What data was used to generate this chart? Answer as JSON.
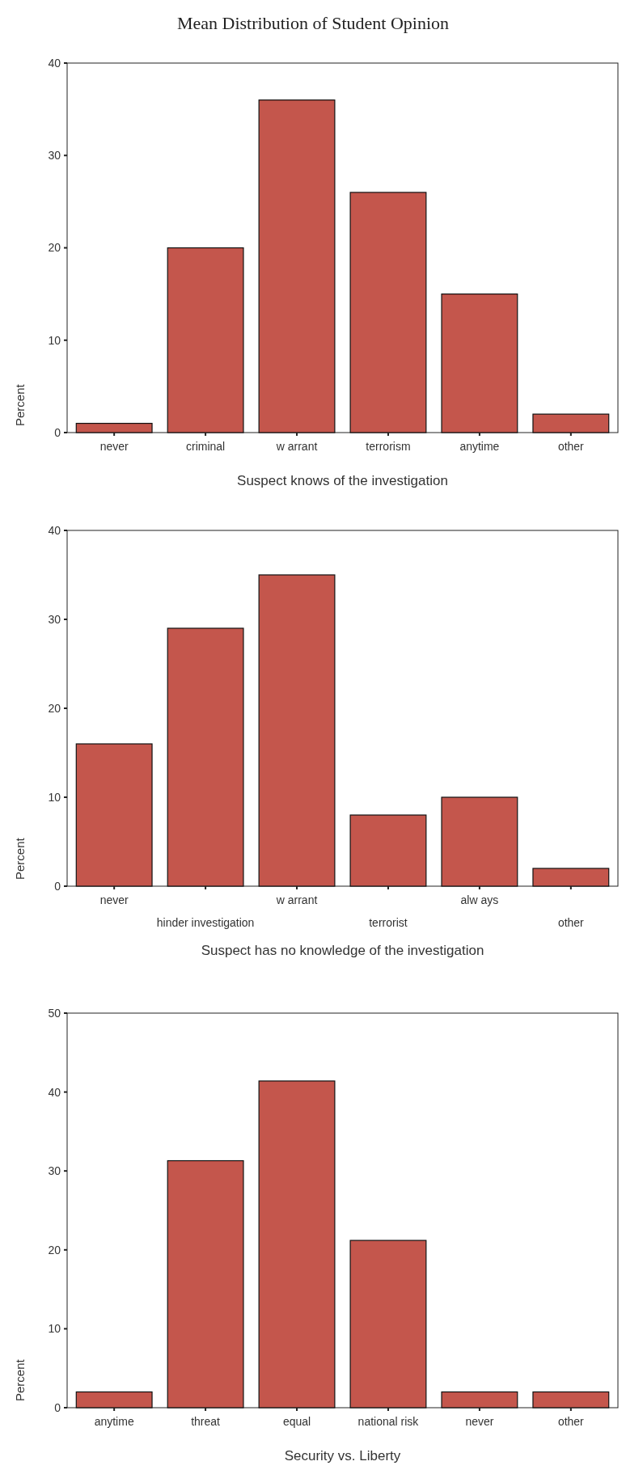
{
  "chart_data": [
    {
      "type": "bar",
      "title": "Mean Distribution of Student Opinion",
      "xlabel": "Suspect knows of the investigation",
      "ylabel": "Percent",
      "categories": [
        "never",
        "criminal",
        "w arrant",
        "terrorism",
        "anytime",
        "other"
      ],
      "values": [
        1,
        20,
        36,
        26,
        15,
        2
      ],
      "color": "#c4564c",
      "ylim": [
        0,
        40
      ],
      "yticks": [
        0,
        10,
        20,
        30,
        40
      ],
      "grid": false
    },
    {
      "type": "bar",
      "xlabel": "Suspect has no knowledge of the investigation",
      "ylabel": "Percent",
      "categories": [
        "never",
        "hinder investigation",
        "w arrant",
        "terrorist",
        "alw ays",
        "other"
      ],
      "values": [
        16,
        29,
        35,
        8,
        10,
        2
      ],
      "color": "#c4564c",
      "ylim": [
        0,
        40
      ],
      "yticks": [
        0,
        10,
        20,
        30,
        40
      ],
      "grid": false
    },
    {
      "type": "bar",
      "xlabel": "Security vs. Liberty",
      "ylabel": "Percent",
      "categories": [
        "anytime",
        "threat",
        "equal",
        "national risk",
        "never",
        "other"
      ],
      "values": [
        2,
        31.3,
        41.4,
        21.2,
        2,
        2
      ],
      "color": "#c4564c",
      "ylim": [
        0,
        50
      ],
      "yticks": [
        0,
        10,
        20,
        30,
        40,
        50
      ],
      "grid": false
    }
  ]
}
